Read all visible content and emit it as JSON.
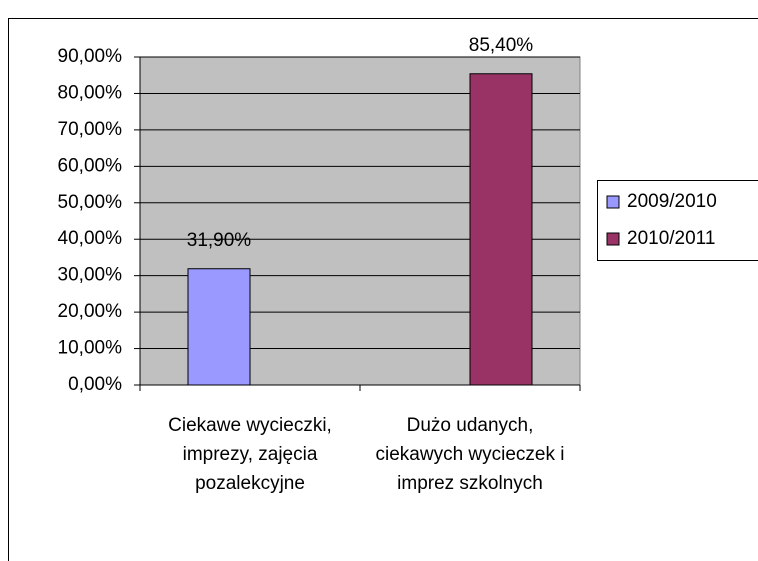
{
  "chart_data": {
    "type": "bar",
    "categories": [
      "Ciekawe wycieczki, imprezy, zajęcia pozalekcyjne",
      "Dużo udanych, ciekawych wycieczek i imprez szkolnych"
    ],
    "series": [
      {
        "name": "2009/2010",
        "color": "#9999ff",
        "values": [
          31.9,
          null
        ],
        "value_labels": [
          "31,90%",
          null
        ]
      },
      {
        "name": "2010/2011",
        "color": "#993366",
        "values": [
          null,
          85.4
        ],
        "value_labels": [
          null,
          "85,40%"
        ]
      }
    ],
    "ylim": [
      0,
      90
    ],
    "yticks": [
      {
        "value": 0,
        "label": "0,00%"
      },
      {
        "value": 10,
        "label": "10,00%"
      },
      {
        "value": 20,
        "label": "20,00%"
      },
      {
        "value": 30,
        "label": "30,00%"
      },
      {
        "value": 40,
        "label": "40,00%"
      },
      {
        "value": 50,
        "label": "50,00%"
      },
      {
        "value": 60,
        "label": "60,00%"
      },
      {
        "value": 70,
        "label": "70,00%"
      },
      {
        "value": 80,
        "label": "80,00%"
      },
      {
        "value": 90,
        "label": "90,00%"
      }
    ],
    "grid": true,
    "legend": "right"
  }
}
